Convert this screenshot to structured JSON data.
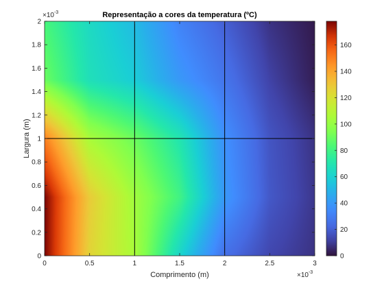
{
  "chart_data": {
    "type": "heatmap",
    "title": "Representação a cores da temperatura (ºC)",
    "xlabel": "Comprimento (m)",
    "ylabel": "Largura (m)",
    "x_exponent": "×10",
    "x_exponent_power": "-3",
    "y_exponent": "×10",
    "y_exponent_power": "-3",
    "xlim": [
      0,
      3
    ],
    "ylim": [
      0,
      2
    ],
    "x_ticks": [
      "0",
      "0.5",
      "1",
      "1.5",
      "2",
      "2.5",
      "3"
    ],
    "y_ticks": [
      "0",
      "0.2",
      "0.4",
      "0.6",
      "0.8",
      "1",
      "1.2",
      "1.4",
      "1.6",
      "1.8",
      "2"
    ],
    "colorbar": {
      "limits": [
        0,
        178
      ],
      "ticks": [
        "0",
        "20",
        "40",
        "60",
        "80",
        "100",
        "120",
        "140",
        "160"
      ],
      "colormap": "turbo"
    },
    "grid_x": [
      0,
      0.5,
      1,
      1.5,
      2,
      2.5,
      3
    ],
    "grid_y": [
      0,
      0.5,
      1,
      1.5,
      2
    ],
    "values": [
      [
        178,
        125,
        105,
        62,
        25,
        13,
        8
      ],
      [
        178,
        128,
        103,
        80,
        40,
        18,
        9
      ],
      [
        150,
        105,
        90,
        70,
        37,
        17,
        8
      ],
      [
        90,
        67,
        58,
        40,
        27,
        12,
        3
      ],
      [
        82,
        64,
        52,
        32,
        20,
        8,
        2
      ]
    ],
    "mesh_lines_x": [
      1,
      2
    ],
    "mesh_lines_y": [
      1
    ]
  }
}
